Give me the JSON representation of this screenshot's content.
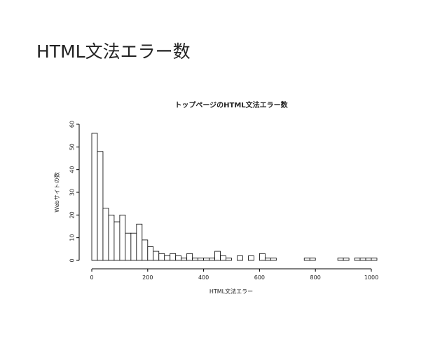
{
  "slide_title": "HTML文法エラー数",
  "chart_data": {
    "type": "histogram",
    "title": "トップページのHTML文法エラー数",
    "x_label": "HTML文法エラー",
    "y_label": "Webサイトの数",
    "bins": [
      0,
      20,
      40,
      60,
      80,
      100,
      120,
      140,
      160,
      180,
      200,
      220,
      240,
      260,
      280,
      300,
      320,
      340,
      360,
      380,
      400,
      420,
      440,
      460,
      480,
      500,
      520,
      540,
      560,
      580,
      600,
      620,
      640,
      660,
      680,
      700,
      720,
      740,
      760,
      780,
      800,
      820,
      840,
      860,
      880,
      900,
      920,
      940,
      960,
      980,
      1000,
      1020
    ],
    "values": [
      56,
      48,
      23,
      20,
      17,
      20,
      12,
      12,
      16,
      9,
      6,
      4,
      3,
      2,
      3,
      2,
      1,
      3,
      1,
      1,
      1,
      1,
      4,
      2,
      1,
      0,
      2,
      0,
      2,
      0,
      3,
      1,
      1,
      0,
      0,
      0,
      0,
      0,
      1,
      1,
      0,
      0,
      0,
      0,
      1,
      1,
      0,
      1,
      1,
      1,
      1
    ],
    "color": "#ffffff",
    "edge_color": "#000000",
    "xlim": [
      0,
      1000
    ],
    "ylim": [
      0,
      60
    ],
    "xticks": [
      0,
      200,
      400,
      600,
      800,
      1000
    ],
    "yticks": [
      0,
      10,
      20,
      30,
      40,
      50,
      60
    ]
  }
}
